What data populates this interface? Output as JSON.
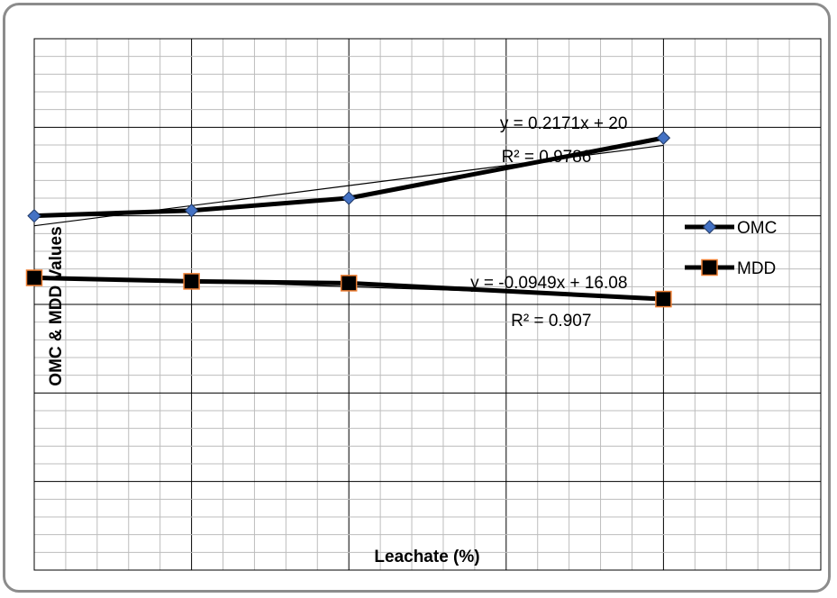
{
  "chart_data": {
    "type": "line",
    "title": "",
    "xlabel": "Leachate (%)",
    "ylabel": "OMC & MDD Values",
    "x": [
      0,
      5,
      10,
      20
    ],
    "xlim": [
      0,
      25
    ],
    "ylim": [
      0,
      30
    ],
    "grid": true,
    "legend_position": "right",
    "series": [
      {
        "name": "OMC",
        "values": [
          20.0,
          20.3,
          21.0,
          24.4
        ],
        "marker": "diamond",
        "color": "#000000",
        "marker_color": "#4472c4",
        "trendline": {
          "equation": "y = 0.2171x + 20",
          "r2": "R² = 0.9786"
        }
      },
      {
        "name": "MDD",
        "values": [
          16.5,
          16.3,
          16.2,
          15.3
        ],
        "marker": "square",
        "color": "#000000",
        "marker_color": "#000000",
        "marker_edge_color": "#ed7d31",
        "trendline": {
          "equation": "y = -0.0949x + 16.08",
          "r2": "R² = 0.907"
        }
      }
    ]
  }
}
